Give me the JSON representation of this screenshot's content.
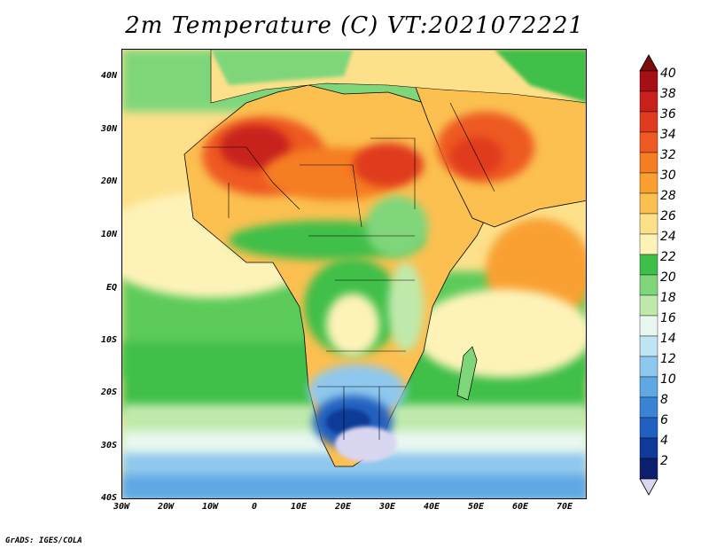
{
  "title": "2m Temperature (C) VT:2021072221",
  "credit": "GrADS: IGES/COLA",
  "axes": {
    "lat_labels": [
      "40N",
      "30N",
      "20N",
      "10N",
      "EQ",
      "10S",
      "20S",
      "30S",
      "40S"
    ],
    "lon_labels": [
      "30W",
      "20W",
      "10W",
      "0",
      "10E",
      "20E",
      "30E",
      "40E",
      "50E",
      "60E",
      "70E"
    ]
  },
  "colorbar": {
    "labels": [
      "40",
      "38",
      "36",
      "34",
      "32",
      "30",
      "28",
      "26",
      "24",
      "22",
      "20",
      "18",
      "16",
      "14",
      "12",
      "10",
      "8",
      "6",
      "4",
      "2"
    ],
    "colors": [
      "#a50f15",
      "#c8201c",
      "#e03a1f",
      "#ee5a24",
      "#f57e24",
      "#f9a030",
      "#fbc050",
      "#fde08a",
      "#fdf3b8",
      "#3fbf4a",
      "#7fd67a",
      "#bfeaac",
      "#e8f8f0",
      "#bfe4f4",
      "#8fc8ee",
      "#5fa8e4",
      "#3a84d6",
      "#2060c0",
      "#0f3a98",
      "#0b1f6e"
    ],
    "under_color": "#d9d6f2",
    "over_color": "#7a0c0c"
  }
}
